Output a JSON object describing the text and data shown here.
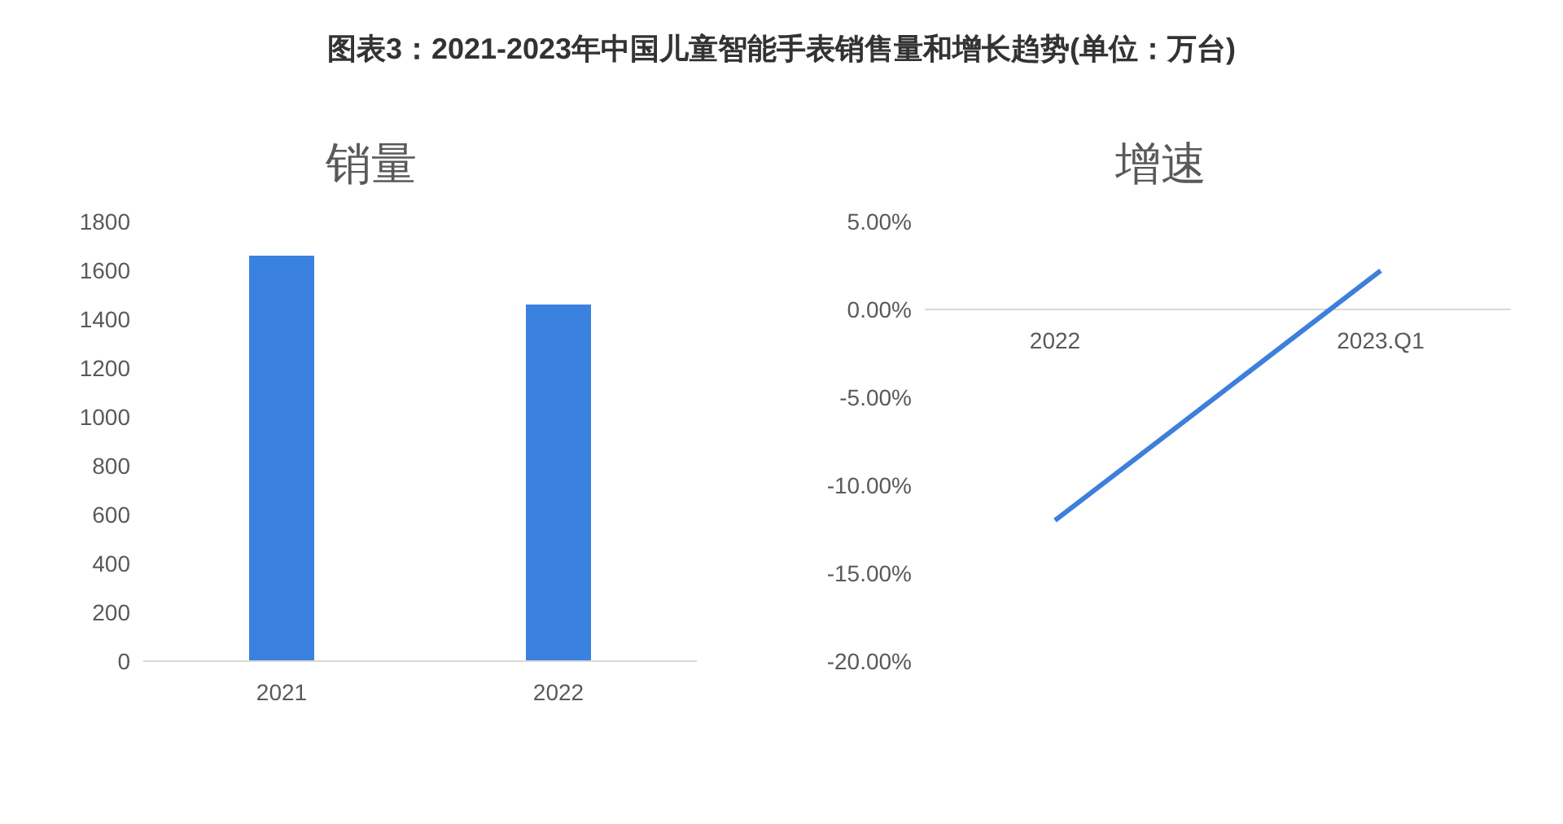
{
  "chart_data": [
    {
      "type": "bar",
      "title": "图表3：2021-2023年中国儿童智能手表销售量和增长趋势(单位：万台)",
      "subtitle": "销量",
      "categories": [
        "2021",
        "2022"
      ],
      "values": [
        1660,
        1460
      ],
      "color": "#3b82e0",
      "ylim": [
        0,
        1800
      ],
      "yticks": [
        0,
        200,
        400,
        600,
        800,
        1000,
        1200,
        1400,
        1600,
        1800
      ],
      "grid": false,
      "legend": false
    },
    {
      "type": "line",
      "title": "增速",
      "categories": [
        "2022",
        "2023.Q1"
      ],
      "values": [
        -12.0,
        2.2
      ],
      "color": "#3d7fdc",
      "ylim": [
        -20,
        5
      ],
      "yticks": [
        {
          "value": -20,
          "label": "-20.00%"
        },
        {
          "value": -15,
          "label": "-15.00%"
        },
        {
          "value": -10,
          "label": "-10.00%"
        },
        {
          "value": -5,
          "label": "-5.00%"
        },
        {
          "value": 0,
          "label": "0.00%"
        },
        {
          "value": 5,
          "label": "5.00%"
        }
      ],
      "grid": false,
      "legend": false,
      "marker": "none"
    }
  ]
}
